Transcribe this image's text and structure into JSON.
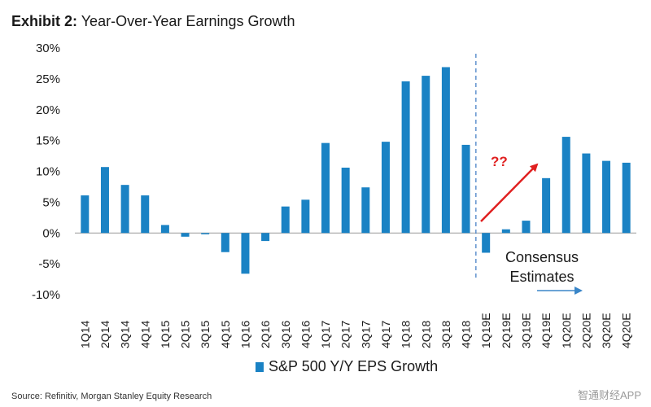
{
  "header": {
    "exhibit": "Exhibit 2:",
    "title": "Year-Over-Year Earnings Growth"
  },
  "footer": {
    "source": "Source: Refinitiv, Morgan Stanley Equity Research",
    "watermark": "智通财经APP"
  },
  "colors": {
    "bar": "#1a82c4",
    "divider": "#3a78c2",
    "red_arrow": "#e02020",
    "blue_arrow": "#3a86c8"
  },
  "chart_data": {
    "type": "bar",
    "title": "Year-Over-Year Earnings Growth",
    "xlabel": "",
    "ylabel": "",
    "ylim": [
      -10,
      30
    ],
    "yticks": [
      "30%",
      "25%",
      "20%",
      "15%",
      "10%",
      "5%",
      "0%",
      "-5%",
      "-10%"
    ],
    "ytick_values": [
      30,
      25,
      20,
      15,
      10,
      5,
      0,
      -5,
      -10
    ],
    "grid": false,
    "legend_position": "bottom",
    "categories": [
      "1Q14",
      "2Q14",
      "3Q14",
      "4Q14",
      "1Q15",
      "2Q15",
      "3Q15",
      "4Q15",
      "1Q16",
      "2Q16",
      "3Q16",
      "4Q16",
      "1Q17",
      "2Q17",
      "3Q17",
      "4Q17",
      "1Q18",
      "2Q18",
      "3Q18",
      "4Q18",
      "1Q19E",
      "2Q19E",
      "3Q19E",
      "4Q19E",
      "1Q20E",
      "2Q20E",
      "3Q20E",
      "4Q20E"
    ],
    "series": [
      {
        "name": "S&P 500 Y/Y EPS Growth",
        "values": [
          6.1,
          10.7,
          7.8,
          6.1,
          1.3,
          -0.6,
          -0.2,
          -3.1,
          -6.6,
          -1.3,
          4.3,
          5.4,
          14.6,
          10.6,
          7.4,
          14.8,
          24.6,
          25.5,
          26.9,
          14.3,
          -3.2,
          0.6,
          2.0,
          8.9,
          15.6,
          12.9,
          11.7,
          11.4
        ]
      }
    ],
    "divider_after": "4Q18",
    "annotations": {
      "question_marks": "??",
      "consensus_line1": "Consensus",
      "consensus_line2": "Estimates"
    }
  }
}
